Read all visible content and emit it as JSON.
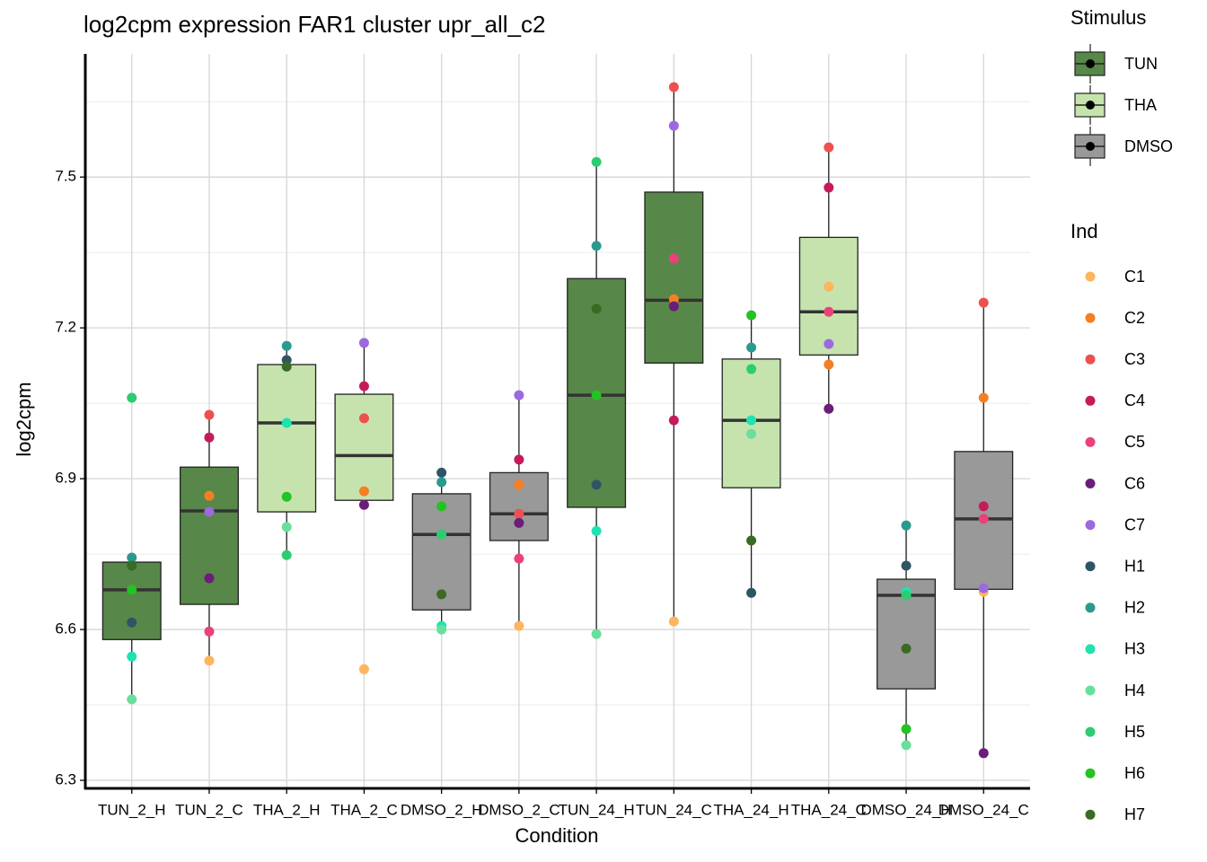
{
  "chart_data": {
    "type": "box",
    "title": "log2cpm expression FAR1 cluster upr_all_c2",
    "x_label": "Condition",
    "y_label": "log2cpm",
    "categories": [
      "TUN_2_H",
      "TUN_2_C",
      "THA_2_H",
      "THA_2_C",
      "DMSO_2_H",
      "DMSO_2_C",
      "TUN_24_H",
      "TUN_24_C",
      "THA_24_H",
      "THA_24_C",
      "DMSO_24_H",
      "DMSO_24_C"
    ],
    "ylim": [
      6.284,
      7.745
    ],
    "yticks": [
      6.3,
      6.6,
      6.9,
      7.2,
      7.5
    ],
    "grid": true,
    "stimulus_legend_title": "Stimulus",
    "stimulus": [
      {
        "name": "TUN",
        "color": "#58874a"
      },
      {
        "name": "THA",
        "color": "#c6e3ae"
      },
      {
        "name": "DMSO",
        "color": "#999999"
      }
    ],
    "box_stimulus": [
      0,
      0,
      1,
      1,
      2,
      2,
      0,
      0,
      1,
      1,
      2,
      2
    ],
    "boxes": [
      {
        "low": 6.461,
        "q1": 6.58,
        "median": 6.679,
        "q3": 6.734,
        "high": 6.743
      },
      {
        "low": 6.538,
        "q1": 6.65,
        "median": 6.836,
        "q3": 6.923,
        "high": 7.027
      },
      {
        "low": 6.748,
        "q1": 6.834,
        "median": 7.011,
        "q3": 7.127,
        "high": 7.164
      },
      {
        "low": 6.848,
        "q1": 6.857,
        "median": 6.946,
        "q3": 7.068,
        "high": 7.17
      },
      {
        "low": 6.6,
        "q1": 6.639,
        "median": 6.789,
        "q3": 6.87,
        "high": 6.912
      },
      {
        "low": 6.607,
        "q1": 6.777,
        "median": 6.83,
        "q3": 6.912,
        "high": 7.066
      },
      {
        "low": 6.591,
        "q1": 6.843,
        "median": 7.066,
        "q3": 7.298,
        "high": 7.53
      },
      {
        "low": 6.616,
        "q1": 7.13,
        "median": 7.255,
        "q3": 7.47,
        "high": 7.679
      },
      {
        "low": 6.673,
        "q1": 6.882,
        "median": 7.016,
        "q3": 7.138,
        "high": 7.225
      },
      {
        "low": 7.039,
        "q1": 7.146,
        "median": 7.232,
        "q3": 7.38,
        "high": 7.559
      },
      {
        "low": 6.37,
        "q1": 6.482,
        "median": 6.668,
        "q3": 6.7,
        "high": 6.807
      },
      {
        "low": 6.354,
        "q1": 6.68,
        "median": 6.82,
        "q3": 6.954,
        "high": 7.25
      }
    ],
    "ind_legend_title": "Ind",
    "series": [
      {
        "name": "C1",
        "color": "#fdb55e",
        "values": [
          null,
          6.538,
          null,
          6.521,
          null,
          6.607,
          null,
          6.616,
          null,
          7.282,
          null,
          6.675
        ]
      },
      {
        "name": "C2",
        "color": "#f57f22",
        "values": [
          null,
          6.866,
          null,
          6.875,
          null,
          6.888,
          null,
          7.257,
          null,
          7.127,
          null,
          7.061
        ]
      },
      {
        "name": "C3",
        "color": "#ee5050",
        "values": [
          null,
          7.027,
          null,
          7.02,
          null,
          6.83,
          null,
          7.679,
          null,
          7.559,
          null,
          7.25
        ]
      },
      {
        "name": "C4",
        "color": "#c51b5a",
        "values": [
          null,
          6.982,
          null,
          7.084,
          null,
          6.938,
          null,
          7.016,
          null,
          7.479,
          null,
          6.845
        ]
      },
      {
        "name": "C5",
        "color": "#ec4178",
        "values": [
          null,
          6.596,
          null,
          null,
          null,
          6.741,
          null,
          7.338,
          null,
          7.232,
          null,
          6.82
        ]
      },
      {
        "name": "C6",
        "color": "#6b1d7b",
        "values": [
          null,
          6.702,
          null,
          6.848,
          null,
          6.812,
          null,
          7.243,
          null,
          7.039,
          null,
          6.354
        ]
      },
      {
        "name": "C7",
        "color": "#9c6ade",
        "values": [
          null,
          6.834,
          null,
          7.17,
          null,
          7.066,
          null,
          7.602,
          null,
          7.168,
          null,
          6.682
        ]
      },
      {
        "name": "H1",
        "color": "#2f5564",
        "values": [
          6.614,
          null,
          7.136,
          null,
          6.912,
          null,
          6.888,
          null,
          6.673,
          null,
          6.727,
          null
        ]
      },
      {
        "name": "H2",
        "color": "#2a9a8f",
        "values": [
          6.743,
          null,
          7.164,
          null,
          6.893,
          null,
          7.363,
          null,
          7.161,
          null,
          6.807,
          null
        ]
      },
      {
        "name": "H3",
        "color": "#1ee3b0",
        "values": [
          6.546,
          null,
          7.011,
          null,
          6.607,
          null,
          6.796,
          null,
          7.016,
          null,
          6.675,
          null
        ]
      },
      {
        "name": "H4",
        "color": "#68e09c",
        "values": [
          6.461,
          null,
          6.804,
          null,
          6.6,
          null,
          6.591,
          null,
          6.989,
          null,
          6.37,
          null
        ]
      },
      {
        "name": "H5",
        "color": "#2ecc71",
        "values": [
          7.061,
          null,
          6.748,
          null,
          6.789,
          null,
          7.53,
          null,
          7.118,
          null,
          6.668,
          null
        ]
      },
      {
        "name": "H6",
        "color": "#22c322",
        "values": [
          6.679,
          null,
          6.864,
          null,
          6.845,
          null,
          7.066,
          null,
          7.225,
          null,
          6.402,
          null
        ]
      },
      {
        "name": "H7",
        "color": "#3a6b22",
        "values": [
          6.727,
          null,
          7.123,
          null,
          6.67,
          null,
          7.238,
          null,
          6.777,
          null,
          6.562,
          null
        ]
      }
    ]
  }
}
